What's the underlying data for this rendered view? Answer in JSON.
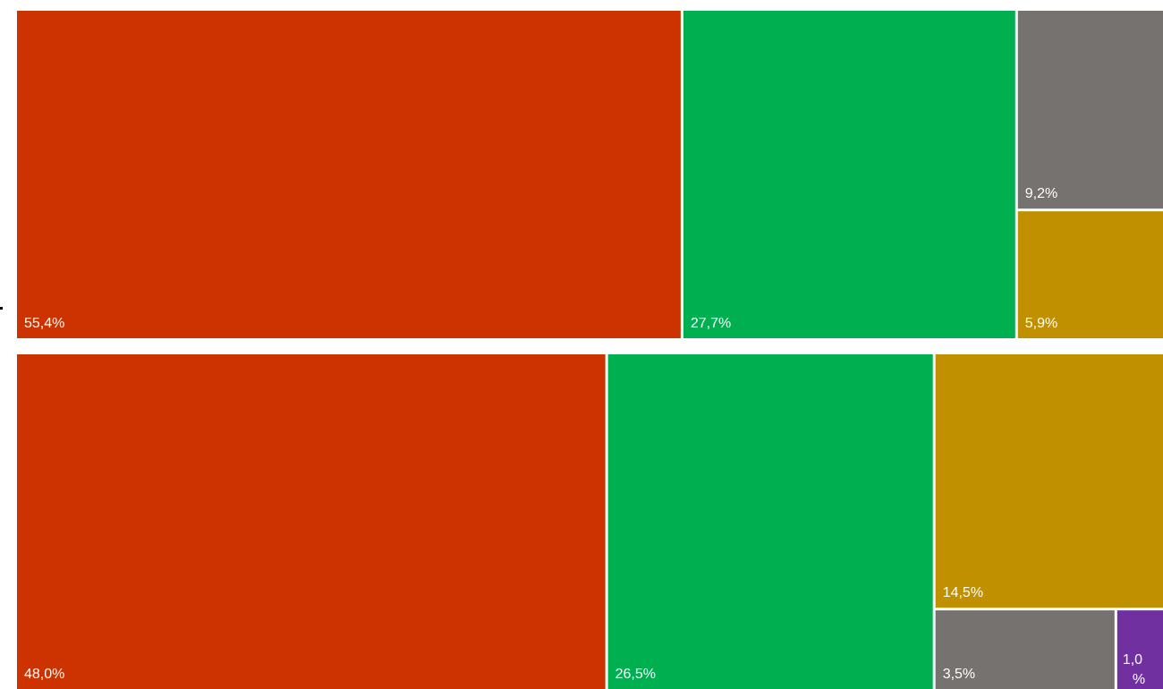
{
  "chart_data": [
    {
      "type": "treemap",
      "series": [
        {
          "label": "55,4%",
          "value": 55.4,
          "color": "#CC3300"
        },
        {
          "label": "27,7%",
          "value": 27.7,
          "color": "#00AF50"
        },
        {
          "label": "9,2%",
          "value": 9.2,
          "color": "#767270"
        },
        {
          "label": "5,9%",
          "value": 5.9,
          "color": "#C09000"
        }
      ]
    },
    {
      "type": "treemap",
      "series": [
        {
          "label": "48,0%",
          "value": 48.0,
          "color": "#CC3300"
        },
        {
          "label": "26,5%",
          "value": 26.5,
          "color": "#00AF50"
        },
        {
          "label": "14,5%",
          "value": 14.5,
          "color": "#C09000"
        },
        {
          "label": "3,5%",
          "value": 3.5,
          "color": "#767270"
        },
        {
          "label": "1,0%",
          "value": 1.0,
          "color": "#7030A0"
        }
      ]
    }
  ]
}
